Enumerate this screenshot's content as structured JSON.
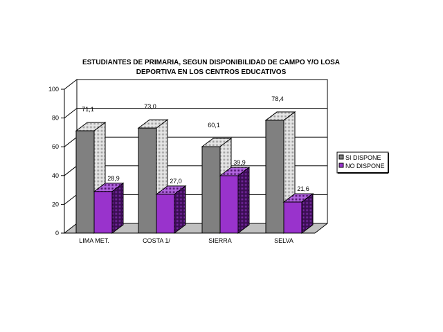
{
  "chart_data": {
    "type": "bar",
    "title_line1": "ESTUDIANTES DE PRIMARIA, SEGUN DISPONIBILIDAD DE CAMPO Y/O LOSA",
    "title_line2": "DEPORTIVA EN LOS CENTROS EDUCATIVOS",
    "categories": [
      "LIMA MET.",
      "COSTA 1/",
      "SIERRA",
      "SELVA"
    ],
    "series": [
      {
        "name": "SI DISPONE",
        "values": [
          71.1,
          73.0,
          60.1,
          78.4
        ],
        "labels": [
          "71,1",
          "73,0",
          "60,1",
          "78,4"
        ],
        "color": "#808080"
      },
      {
        "name": "NO DISPONE",
        "values": [
          28.9,
          27.0,
          39.9,
          21.6
        ],
        "labels": [
          "28,9",
          "27,0",
          "39,9",
          "21,6"
        ],
        "color": "#9933cc"
      }
    ],
    "yticks": [
      "0",
      "20",
      "40",
      "60",
      "80",
      "100"
    ],
    "ylim": [
      0,
      100
    ],
    "grid": true,
    "legend": "right",
    "style": "3d-columns"
  }
}
